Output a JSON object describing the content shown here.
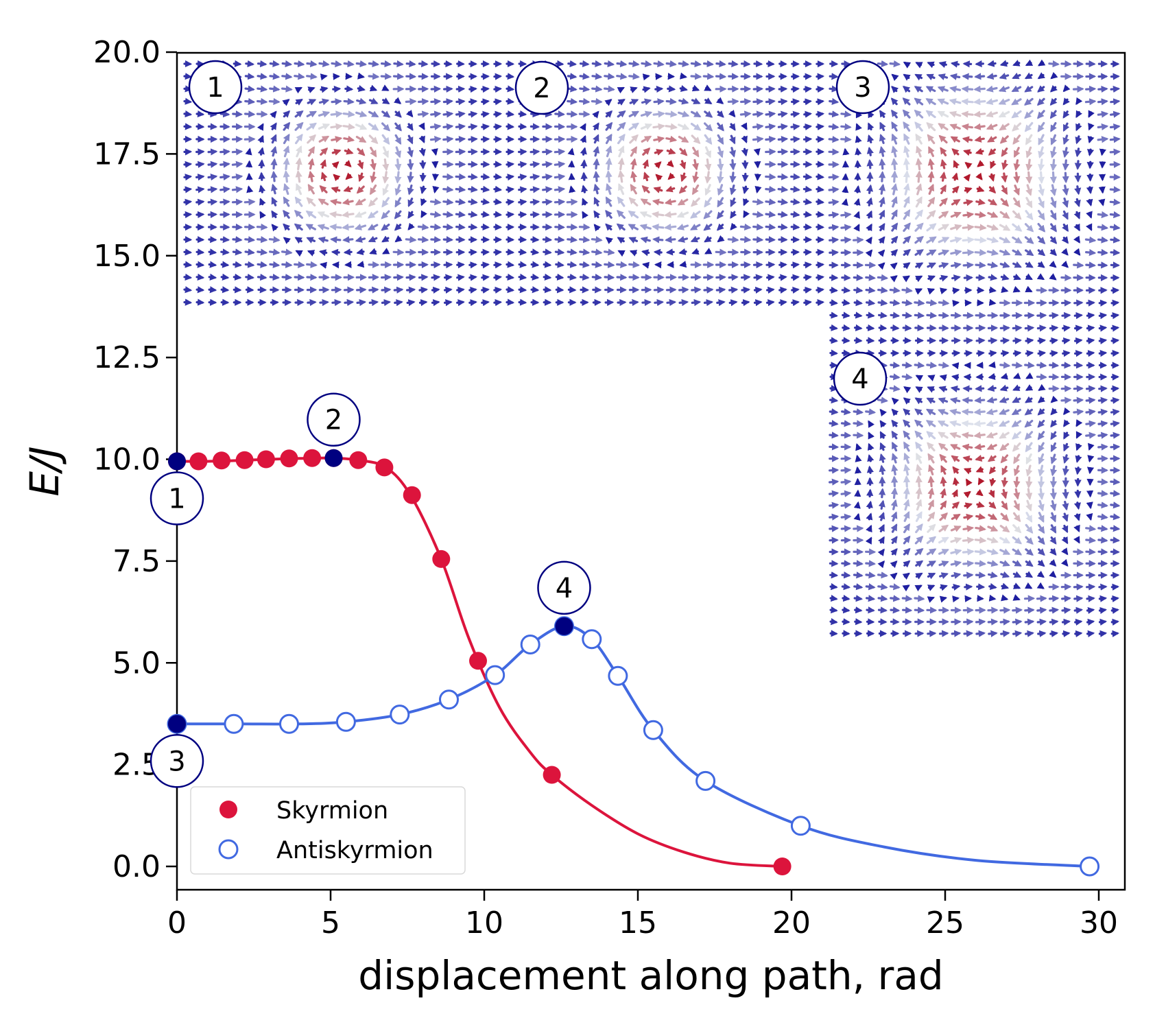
{
  "chart_data": {
    "type": "line",
    "xlabel": "displacement along path, rad",
    "ylabel": "E/J",
    "xlim": [
      0,
      31
    ],
    "ylim": [
      -0.5,
      20.0
    ],
    "x_ticks": [
      "0",
      "5",
      "10",
      "15",
      "20",
      "25",
      "30"
    ],
    "y_ticks": [
      "0.0",
      "2.5",
      "5.0",
      "7.5",
      "10.0",
      "12.5",
      "15.0",
      "17.5",
      "20.0"
    ],
    "series": [
      {
        "name": "Skyrmion",
        "color": "#dc143c",
        "marker": "filled-circle",
        "x": [
          0.0,
          0.7,
          1.45,
          2.2,
          2.9,
          3.65,
          4.4,
          5.1,
          5.9,
          6.75,
          7.65,
          8.6,
          9.8,
          12.2,
          19.7
        ],
        "y": [
          9.95,
          9.95,
          9.97,
          9.98,
          10.0,
          10.02,
          10.03,
          10.03,
          9.98,
          9.8,
          9.12,
          7.55,
          5.05,
          2.25,
          0.0
        ],
        "curve_x": [
          0,
          1,
          2,
          3,
          4,
          5,
          5.9,
          6.8,
          7.6,
          8.6,
          9.5,
          10.5,
          11.5,
          12.2,
          13.5,
          15,
          16.5,
          18,
          19.7
        ],
        "curve_y": [
          9.95,
          9.95,
          9.97,
          10.0,
          10.02,
          10.03,
          9.98,
          9.8,
          9.12,
          7.55,
          5.6,
          3.9,
          2.8,
          2.25,
          1.5,
          0.8,
          0.35,
          0.08,
          0.0
        ]
      },
      {
        "name": "Antiskyrmion",
        "color": "#4169e1",
        "marker": "open-circle",
        "x": [
          0.0,
          1.85,
          3.65,
          5.5,
          7.25,
          8.85,
          10.35,
          11.5,
          12.6,
          13.5,
          14.35,
          15.5,
          17.2,
          20.3,
          29.7
        ],
        "y": [
          3.5,
          3.5,
          3.5,
          3.55,
          3.73,
          4.1,
          4.7,
          5.45,
          5.9,
          5.58,
          4.68,
          3.35,
          2.1,
          1.0,
          0.0
        ],
        "curve_x": [
          0,
          2,
          4,
          5.5,
          7.25,
          8.85,
          10.35,
          11.5,
          12.6,
          13.5,
          14.35,
          15.5,
          17.2,
          20.3,
          23,
          26,
          29.7
        ],
        "curve_y": [
          3.5,
          3.5,
          3.5,
          3.55,
          3.73,
          4.1,
          4.7,
          5.45,
          5.9,
          5.58,
          4.68,
          3.35,
          2.1,
          1.0,
          0.48,
          0.15,
          0.0
        ]
      }
    ],
    "highlighted_points": [
      {
        "label": "1",
        "x": 0.0,
        "y": 9.95,
        "label_side": "below"
      },
      {
        "label": "2",
        "x": 5.1,
        "y": 10.03,
        "label_side": "above"
      },
      {
        "label": "3",
        "x": 0.0,
        "y": 3.5,
        "label_side": "below"
      },
      {
        "label": "4",
        "x": 12.6,
        "y": 5.9,
        "label_side": "above"
      }
    ],
    "highlight_color": "#000080",
    "legend": {
      "placement": "lower-left",
      "entries": [
        "Skyrmion",
        "Antiskyrmion"
      ]
    },
    "inset_panels": [
      {
        "label": "1",
        "kind": "skyrmion"
      },
      {
        "label": "2",
        "kind": "skyrmion"
      },
      {
        "label": "3",
        "kind": "antiskyrmion"
      },
      {
        "label": "4",
        "kind": "antiskyrmion"
      }
    ],
    "grid": false
  }
}
